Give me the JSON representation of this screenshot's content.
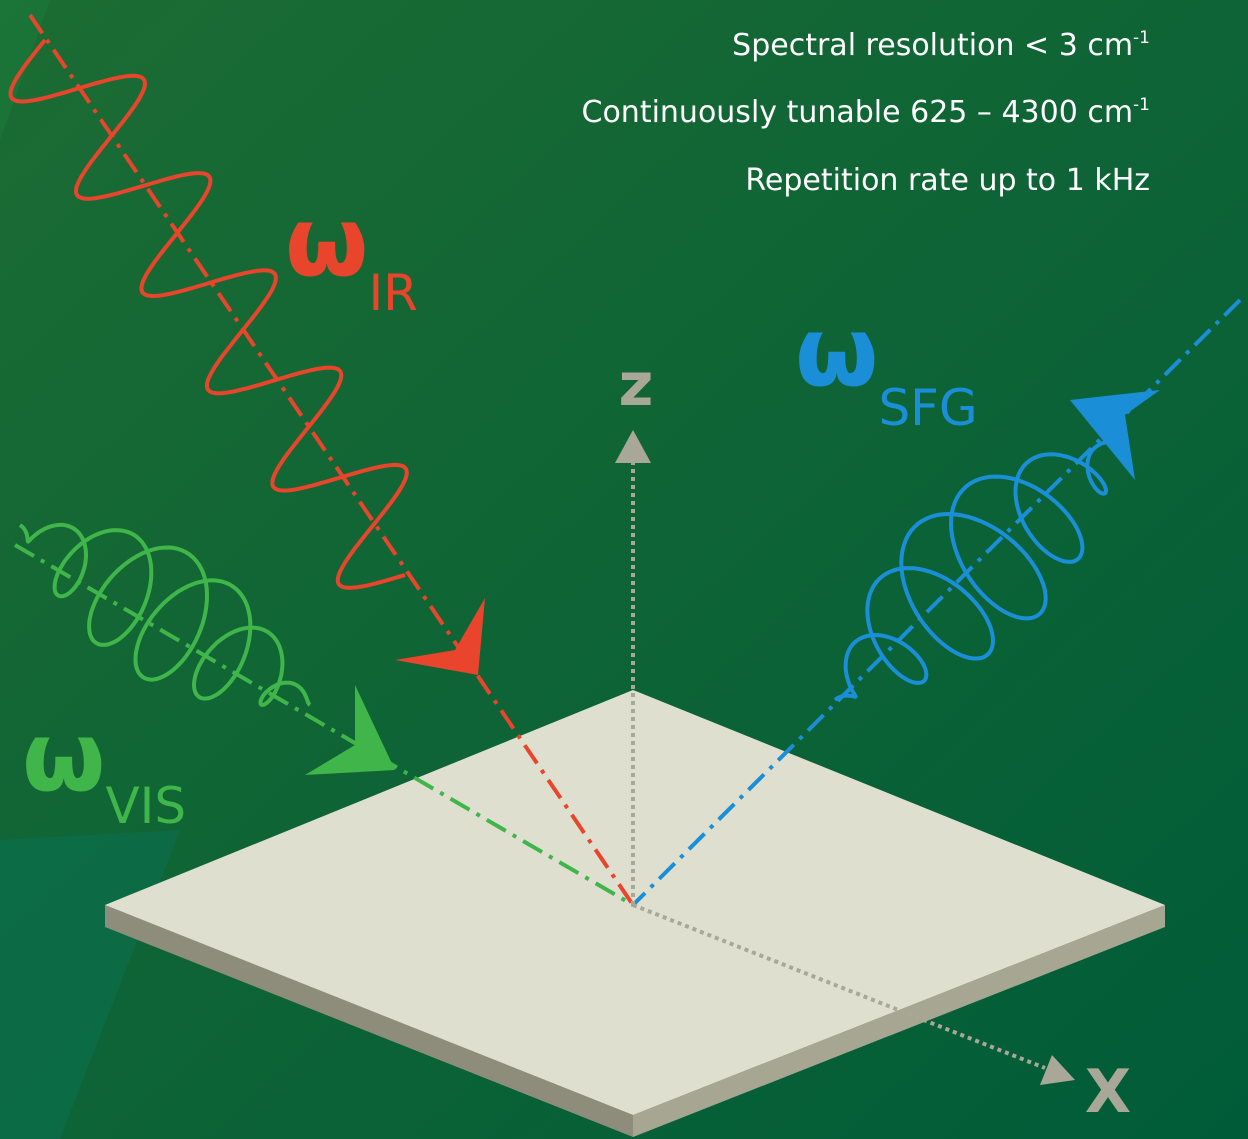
{
  "specs": [
    {
      "text": "Spectral resolution  < 3 cm",
      "sup": "-1"
    },
    {
      "text": "Continuously tunable 625 – 4300 cm",
      "sup": "-1"
    },
    {
      "text": "Repetition rate up to 1 kHz"
    }
  ],
  "beams": [
    {
      "symbol": "ω",
      "sub": "IR"
    },
    {
      "symbol": "ω",
      "sub": "SFG"
    },
    {
      "symbol": "ω",
      "sub": "VIS"
    }
  ],
  "axes": {
    "z": "z",
    "x": "X"
  }
}
